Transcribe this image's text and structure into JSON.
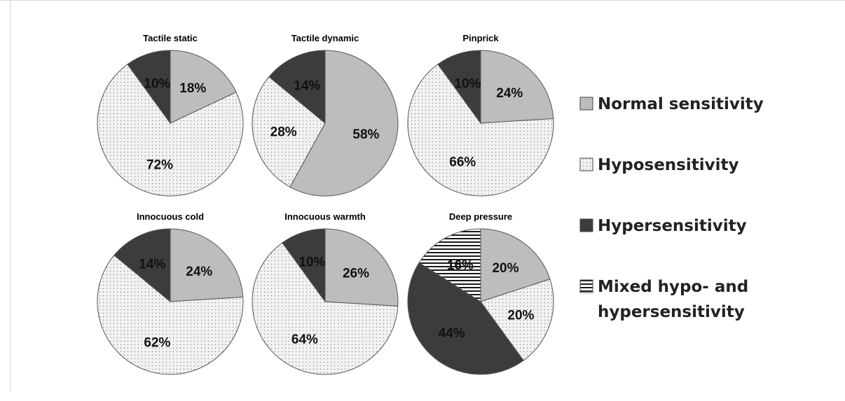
{
  "colors": {
    "normal": "#bdbdbd",
    "hypo": "#f1f1f1",
    "hyper": "#3c3c3c",
    "mixed": "#ffffff"
  },
  "legend": [
    {
      "key": "normal",
      "lines": [
        "Normal sensitivity"
      ]
    },
    {
      "key": "hypo",
      "lines": [
        "Hyposensitivity"
      ]
    },
    {
      "key": "hyper",
      "lines": [
        "Hypersensitivity"
      ]
    },
    {
      "key": "mixed",
      "lines": [
        "Mixed hypo- and",
        "hypersensitivity"
      ]
    }
  ],
  "chart_data": [
    {
      "type": "pie",
      "title": "Tactile static",
      "slices": [
        {
          "category": "normal",
          "value": 18,
          "label": "18%"
        },
        {
          "category": "hypo",
          "value": 72,
          "label": "72%"
        },
        {
          "category": "hyper",
          "value": 10,
          "label": "10%"
        }
      ]
    },
    {
      "type": "pie",
      "title": "Tactile dynamic",
      "slices": [
        {
          "category": "normal",
          "value": 58,
          "label": "58%"
        },
        {
          "category": "hypo",
          "value": 28,
          "label": "28%"
        },
        {
          "category": "hyper",
          "value": 14,
          "label": "14%"
        }
      ]
    },
    {
      "type": "pie",
      "title": "Pinprick",
      "slices": [
        {
          "category": "normal",
          "value": 24,
          "label": "24%"
        },
        {
          "category": "hypo",
          "value": 66,
          "label": "66%"
        },
        {
          "category": "hyper",
          "value": 10,
          "label": "10%"
        }
      ]
    },
    {
      "type": "pie",
      "title": "Innocuous cold",
      "slices": [
        {
          "category": "normal",
          "value": 24,
          "label": "24%"
        },
        {
          "category": "hypo",
          "value": 62,
          "label": "62%"
        },
        {
          "category": "hyper",
          "value": 14,
          "label": "14%"
        }
      ]
    },
    {
      "type": "pie",
      "title": "Innocuous warmth",
      "slices": [
        {
          "category": "normal",
          "value": 26,
          "label": "26%"
        },
        {
          "category": "hypo",
          "value": 64,
          "label": "64%"
        },
        {
          "category": "hyper",
          "value": 10,
          "label": "10%"
        }
      ]
    },
    {
      "type": "pie",
      "title": "Deep pressure",
      "slices": [
        {
          "category": "normal",
          "value": 20,
          "label": "20%"
        },
        {
          "category": "hypo",
          "value": 20,
          "label": "20%"
        },
        {
          "category": "hyper",
          "value": 44,
          "label": "44%"
        },
        {
          "category": "mixed",
          "value": 16,
          "label": "16%"
        }
      ]
    }
  ]
}
